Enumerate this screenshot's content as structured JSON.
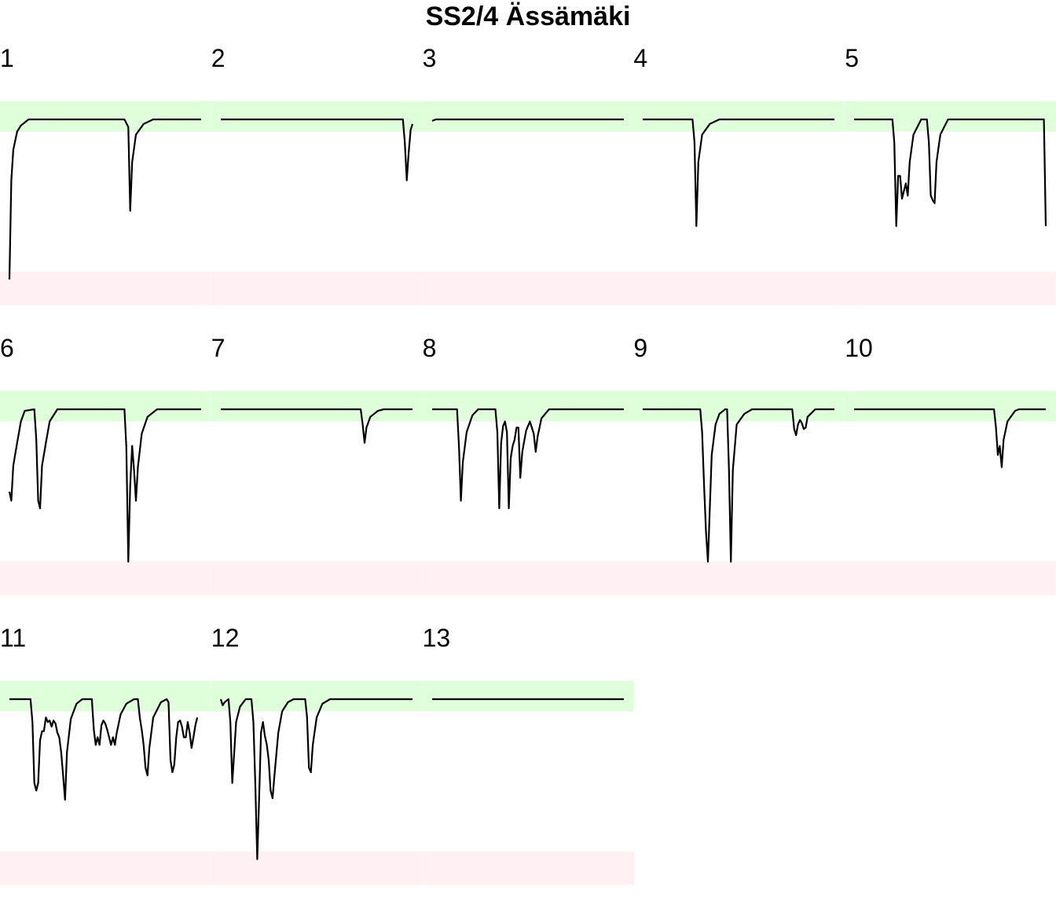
{
  "chart_data": {
    "type": "line",
    "title": "SS2/4 Ässämäki",
    "panel_layout": "5 columns, 3 rows",
    "ylim": [
      0,
      100
    ],
    "bands": [
      {
        "name": "good",
        "range": [
          92,
          112
        ],
        "color": "#dfffdb"
      },
      {
        "name": "bad",
        "range": [
          -22,
          0
        ],
        "color": "#fff0f3"
      }
    ],
    "line_color": "#000000",
    "panels": [
      {
        "label": "1",
        "points": [
          [
            0,
            -5
          ],
          [
            1,
            60
          ],
          [
            2,
            80
          ],
          [
            4,
            92
          ],
          [
            6,
            96
          ],
          [
            10,
            100
          ],
          [
            60,
            100
          ],
          [
            62,
            95
          ],
          [
            63,
            40
          ],
          [
            64,
            72
          ],
          [
            66,
            90
          ],
          [
            70,
            97
          ],
          [
            75,
            100
          ],
          [
            100,
            100
          ]
        ]
      },
      {
        "label": "2",
        "points": [
          [
            0,
            100
          ],
          [
            95,
            100
          ],
          [
            96,
            85
          ],
          [
            97,
            60
          ],
          [
            98,
            78
          ],
          [
            99,
            93
          ],
          [
            100,
            97
          ]
        ]
      },
      {
        "label": "3",
        "points": [
          [
            0,
            99
          ],
          [
            2,
            100
          ],
          [
            100,
            100
          ]
        ]
      },
      {
        "label": "4",
        "points": [
          [
            0,
            100
          ],
          [
            26,
            100
          ],
          [
            27,
            85
          ],
          [
            28,
            30
          ],
          [
            29,
            72
          ],
          [
            31,
            90
          ],
          [
            35,
            97
          ],
          [
            40,
            100
          ],
          [
            100,
            100
          ]
        ]
      },
      {
        "label": "5",
        "points": [
          [
            0,
            100
          ],
          [
            20,
            100
          ],
          [
            21,
            85
          ],
          [
            22,
            30
          ],
          [
            23,
            63
          ],
          [
            24,
            63
          ],
          [
            25,
            48
          ],
          [
            26,
            53
          ],
          [
            27,
            58
          ],
          [
            28,
            50
          ],
          [
            29,
            72
          ],
          [
            31,
            90
          ],
          [
            35,
            100
          ],
          [
            38,
            100
          ],
          [
            39,
            85
          ],
          [
            40,
            50
          ],
          [
            41,
            47
          ],
          [
            42,
            45
          ],
          [
            43,
            72
          ],
          [
            45,
            90
          ],
          [
            49,
            100
          ],
          [
            99,
            100
          ],
          [
            100,
            30
          ]
        ]
      },
      {
        "label": "6",
        "points": [
          [
            0,
            46
          ],
          [
            1,
            40
          ],
          [
            2,
            63
          ],
          [
            4,
            78
          ],
          [
            6,
            92
          ],
          [
            8,
            99
          ],
          [
            13,
            100
          ],
          [
            14,
            80
          ],
          [
            15,
            40
          ],
          [
            16,
            35
          ],
          [
            17,
            63
          ],
          [
            19,
            78
          ],
          [
            21,
            92
          ],
          [
            25,
            100
          ],
          [
            60,
            100
          ],
          [
            61,
            75
          ],
          [
            62,
            0
          ],
          [
            63,
            50
          ],
          [
            64,
            76
          ],
          [
            65,
            60
          ],
          [
            66,
            40
          ],
          [
            67,
            62
          ],
          [
            69,
            84
          ],
          [
            72,
            95
          ],
          [
            77,
            100
          ],
          [
            100,
            100
          ]
        ]
      },
      {
        "label": "7",
        "points": [
          [
            0,
            100
          ],
          [
            73,
            100
          ],
          [
            74,
            90
          ],
          [
            75,
            78
          ],
          [
            76,
            88
          ],
          [
            78,
            95
          ],
          [
            82,
            99
          ],
          [
            85,
            100
          ],
          [
            100,
            100
          ]
        ]
      },
      {
        "label": "8",
        "points": [
          [
            0,
            100
          ],
          [
            13,
            100
          ],
          [
            14,
            75
          ],
          [
            15,
            40
          ],
          [
            16,
            65
          ],
          [
            18,
            85
          ],
          [
            21,
            96
          ],
          [
            24,
            100
          ],
          [
            33,
            100
          ],
          [
            34,
            85
          ],
          [
            35,
            35
          ],
          [
            36,
            78
          ],
          [
            37,
            89
          ],
          [
            38,
            92
          ],
          [
            39,
            85
          ],
          [
            40,
            35
          ],
          [
            41,
            68
          ],
          [
            42,
            76
          ],
          [
            43,
            80
          ],
          [
            44,
            88
          ],
          [
            45,
            88
          ],
          [
            46,
            55
          ],
          [
            47,
            72
          ],
          [
            49,
            86
          ],
          [
            51,
            92
          ],
          [
            53,
            84
          ],
          [
            54,
            72
          ],
          [
            55,
            82
          ],
          [
            57,
            94
          ],
          [
            61,
            100
          ],
          [
            100,
            100
          ]
        ]
      },
      {
        "label": "9",
        "points": [
          [
            0,
            100
          ],
          [
            30,
            100
          ],
          [
            31,
            85
          ],
          [
            32,
            50
          ],
          [
            33,
            20
          ],
          [
            34,
            0
          ],
          [
            35,
            35
          ],
          [
            36,
            70
          ],
          [
            38,
            90
          ],
          [
            40,
            97
          ],
          [
            43,
            100
          ],
          [
            44,
            100
          ],
          [
            45,
            60
          ],
          [
            46,
            0
          ],
          [
            47,
            60
          ],
          [
            49,
            90
          ],
          [
            53,
            97
          ],
          [
            57,
            100
          ],
          [
            78,
            100
          ],
          [
            79,
            87
          ],
          [
            80,
            83
          ],
          [
            81,
            90
          ],
          [
            82,
            93
          ],
          [
            83,
            91
          ],
          [
            84,
            87
          ],
          [
            85,
            88
          ],
          [
            86,
            95
          ],
          [
            90,
            100
          ],
          [
            100,
            100
          ]
        ]
      },
      {
        "label": "10",
        "points": [
          [
            0,
            100
          ],
          [
            73,
            100
          ],
          [
            74,
            88
          ],
          [
            75,
            70
          ],
          [
            76,
            76
          ],
          [
            77,
            62
          ],
          [
            78,
            80
          ],
          [
            80,
            92
          ],
          [
            84,
            99
          ],
          [
            86,
            100
          ],
          [
            100,
            100
          ]
        ]
      },
      {
        "label": "11",
        "points": [
          [
            0,
            100
          ],
          [
            11,
            100
          ],
          [
            12,
            85
          ],
          [
            13,
            45
          ],
          [
            14,
            40
          ],
          [
            15,
            45
          ],
          [
            16,
            73
          ],
          [
            17,
            79
          ],
          [
            18,
            79
          ],
          [
            19,
            88
          ],
          [
            20,
            85
          ],
          [
            21,
            86
          ],
          [
            22,
            82
          ],
          [
            23,
            86
          ],
          [
            24,
            84
          ],
          [
            25,
            78
          ],
          [
            26,
            75
          ],
          [
            27,
            65
          ],
          [
            28,
            50
          ],
          [
            29,
            34
          ],
          [
            30,
            65
          ],
          [
            32,
            87
          ],
          [
            35,
            97
          ],
          [
            38,
            100
          ],
          [
            43,
            100
          ],
          [
            44,
            80
          ],
          [
            45,
            70
          ],
          [
            46,
            75
          ],
          [
            47,
            70
          ],
          [
            48,
            83
          ],
          [
            49,
            86
          ],
          [
            50,
            84
          ],
          [
            51,
            80
          ],
          [
            52,
            75
          ],
          [
            53,
            70
          ],
          [
            54,
            75
          ],
          [
            55,
            70
          ],
          [
            56,
            78
          ],
          [
            58,
            90
          ],
          [
            61,
            97
          ],
          [
            65,
            100
          ],
          [
            67,
            100
          ],
          [
            68,
            88
          ],
          [
            69,
            80
          ],
          [
            70,
            70
          ],
          [
            71,
            55
          ],
          [
            72,
            50
          ],
          [
            73,
            68
          ],
          [
            75,
            88
          ],
          [
            79,
            98
          ],
          [
            82,
            100
          ],
          [
            83,
            98
          ],
          [
            84,
            60
          ],
          [
            85,
            52
          ],
          [
            86,
            57
          ],
          [
            87,
            75
          ],
          [
            88,
            85
          ],
          [
            89,
            86
          ],
          [
            90,
            82
          ],
          [
            91,
            75
          ],
          [
            92,
            75
          ],
          [
            93,
            85
          ],
          [
            94,
            78
          ],
          [
            95,
            68
          ],
          [
            96,
            75
          ],
          [
            97,
            83
          ],
          [
            98,
            88
          ]
        ]
      },
      {
        "label": "12",
        "points": [
          [
            0,
            100
          ],
          [
            1,
            96
          ],
          [
            2,
            98
          ],
          [
            4,
            100
          ],
          [
            5,
            85
          ],
          [
            6,
            45
          ],
          [
            7,
            65
          ],
          [
            8,
            85
          ],
          [
            10,
            95
          ],
          [
            13,
            100
          ],
          [
            16,
            100
          ],
          [
            17,
            85
          ],
          [
            18,
            45
          ],
          [
            19,
            -5
          ],
          [
            20,
            35
          ],
          [
            21,
            78
          ],
          [
            22,
            85
          ],
          [
            23,
            76
          ],
          [
            24,
            70
          ],
          [
            25,
            60
          ],
          [
            26,
            40
          ],
          [
            27,
            35
          ],
          [
            28,
            50
          ],
          [
            30,
            78
          ],
          [
            32,
            92
          ],
          [
            35,
            98
          ],
          [
            38,
            100
          ],
          [
            44,
            100
          ],
          [
            45,
            88
          ],
          [
            46,
            55
          ],
          [
            47,
            52
          ],
          [
            48,
            70
          ],
          [
            50,
            88
          ],
          [
            53,
            97
          ],
          [
            57,
            100
          ],
          [
            100,
            100
          ]
        ]
      },
      {
        "label": "13",
        "points": [
          [
            0,
            100
          ],
          [
            100,
            100
          ]
        ]
      }
    ]
  }
}
